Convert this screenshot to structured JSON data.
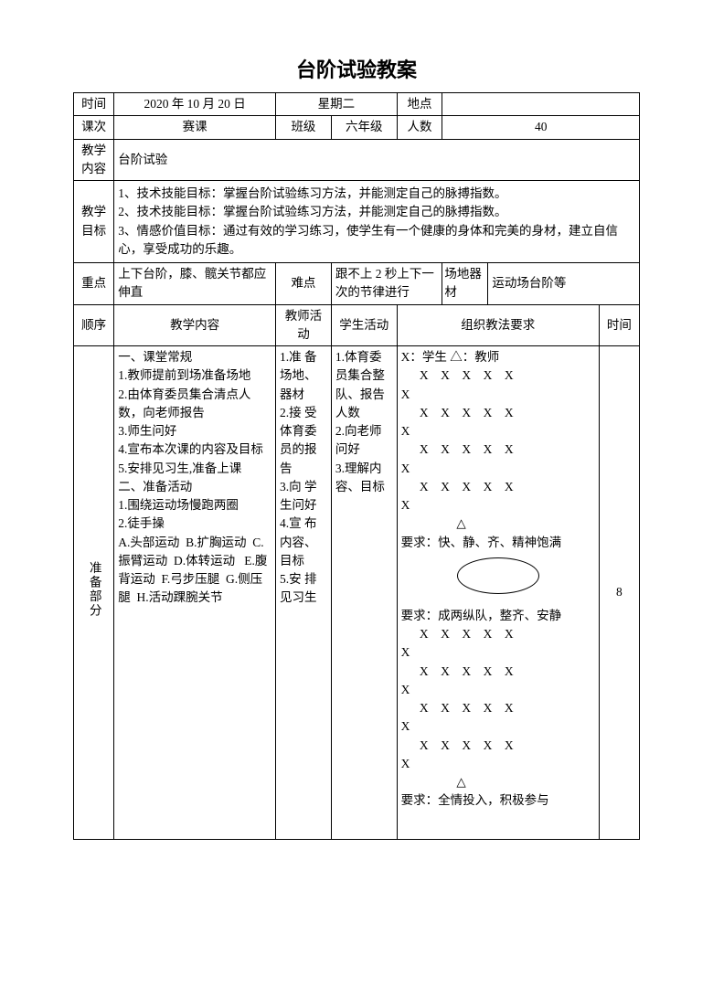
{
  "title": "台阶试验教案",
  "meta": {
    "time_label": "时间",
    "time_value": "2020 年 10 月 20 日",
    "weekday_label": "星期二",
    "place_label": "地点",
    "place_value": "",
    "session_label": "课次",
    "session_value": "赛课",
    "class_label": "班级",
    "class_value": "六年级",
    "count_label": "人数",
    "count_value": "40",
    "content_label": "教学内容",
    "content_value": "台阶试验",
    "goal_label": "教学目标",
    "goal_value": "1、技术技能目标：掌握台阶试验练习方法，并能测定自己的脉搏指数。\n2、技术技能目标：掌握台阶试验练习方法，并能测定自己的脉搏指数。\n3、情感价值目标：通过有效的学习练习，使学生有一个健康的身体和完美的身材，建立自信心，享受成功的乐趣。",
    "focus_label": "重点",
    "focus_value": "上下台阶，膝、髋关节都应伸直",
    "difficulty_label": "难点",
    "difficulty_value": "跟不上 2 秒上下一次的节律进行",
    "equip_label": "场地器材",
    "equip_value": "运动场台阶等"
  },
  "headers": {
    "order": "顺序",
    "teach_content": "教学内容",
    "teacher_act": "教师活动",
    "student_act": "学生活动",
    "org_req": "组织教法要求",
    "time": "时间"
  },
  "prep": {
    "section_label": "准备部分",
    "teach_content": "一、课堂常规\n1.教师提前到场准备场地\n2.由体育委员集合清点人数，向老师报告\n3.师生问好\n4.宣布本次课的内容及目标\n5.安排见习生,准备上课\n二、准备活动\n1.围绕运动场慢跑两圈\n2.徒手操\nA.头部运动  B.扩胸运动  C.振臂运动  D.体转运动   E.腹背运动  F.弓步压腿  G.侧压腿  H.活动踝腕关节",
    "teacher_act": "1.准 备场地、器材\n2.接 受体育委员的报告\n3.向 学生问好\n4.宣 布内容、目标\n5.安 排见习生",
    "student_act": "1.体育委员集合整队、报告人数\n2.向老师问好\n3.理解内容、目标",
    "time_value": "8",
    "org": {
      "legend": "X：学生      △：教师",
      "rows1": [
        "      X    X    X    X    X",
        "X",
        "      X    X    X    X    X",
        "X",
        "      X    X    X    X    X",
        "X",
        "      X    X    X    X    X",
        "X"
      ],
      "tri1": "                  △",
      "req1": "要求：快、静、齐、精神饱满",
      "req2": "要求：成两纵队，整齐、安静",
      "rows2": [
        "      X    X    X    X    X",
        "X",
        "      X    X    X    X    X",
        "X",
        "      X    X    X    X    X",
        "X",
        "      X    X    X    X    X",
        "X"
      ],
      "tri2": "                  △",
      "req3": "要求：全情投入，积极参与"
    }
  }
}
